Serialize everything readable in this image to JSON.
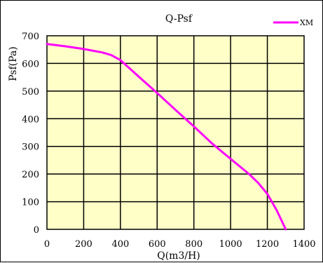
{
  "chart_data": {
    "type": "line",
    "title": "Q-Psf",
    "xlabel": "Q(m3/H)",
    "ylabel": "Psf(Pa)",
    "xlim": [
      0,
      1400
    ],
    "ylim": [
      0,
      700
    ],
    "x_ticks": [
      0,
      200,
      400,
      600,
      800,
      1000,
      1200,
      1400
    ],
    "y_ticks": [
      0,
      100,
      200,
      300,
      400,
      500,
      600,
      700
    ],
    "grid": true,
    "legend_position": "top-right",
    "plot_background": "#FFFFC8",
    "series": [
      {
        "name": "XM",
        "color": "#FF00FF",
        "points": [
          [
            0,
            670
          ],
          [
            100,
            662
          ],
          [
            200,
            652
          ],
          [
            300,
            640
          ],
          [
            350,
            630
          ],
          [
            400,
            612
          ],
          [
            450,
            582
          ],
          [
            500,
            552
          ],
          [
            600,
            493
          ],
          [
            700,
            432
          ],
          [
            800,
            372
          ],
          [
            900,
            310
          ],
          [
            1000,
            255
          ],
          [
            1100,
            200
          ],
          [
            1150,
            168
          ],
          [
            1200,
            128
          ],
          [
            1250,
            70
          ],
          [
            1300,
            0
          ]
        ]
      }
    ]
  }
}
